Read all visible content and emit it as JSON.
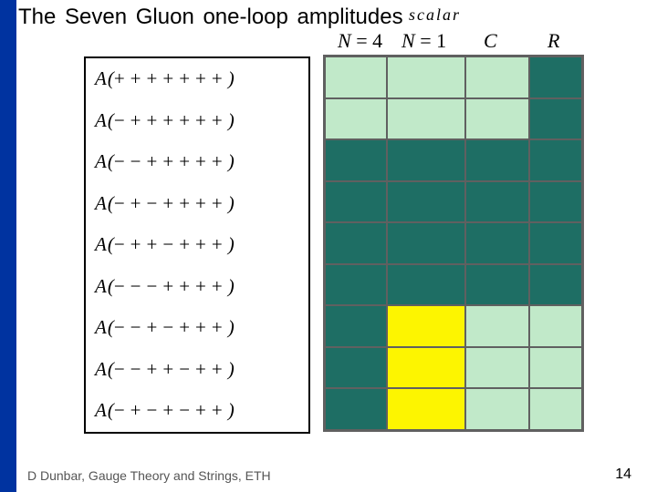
{
  "title": "The  Seven Gluon one-loop amplitudes",
  "scalar_label": "scalar",
  "headers": {
    "n4": "N = 4",
    "n1": "N = 1",
    "c": "C",
    "r": "R"
  },
  "amplitudes": [
    "A(+ + + + + + +)",
    "A(− + + + + + +)",
    "A(− − + + + + +)",
    "A(− + − + + + +)",
    "A(− + + − + + +)",
    "A(− − − + + + +)",
    "A(− − + − + + +)",
    "A(− − + + − + +)",
    "A(− + − + − + +)"
  ],
  "colors": {
    "mint": "#c1e9c9",
    "teal": "#1e6e64",
    "yellow": "#fdf500"
  },
  "grid": [
    [
      "mint",
      "mint",
      "mint",
      "teal"
    ],
    [
      "mint",
      "mint",
      "mint",
      "teal"
    ],
    [
      "teal",
      "teal",
      "teal",
      "teal"
    ],
    [
      "teal",
      "teal",
      "teal",
      "teal"
    ],
    [
      "teal",
      "teal",
      "teal",
      "teal"
    ],
    [
      "teal",
      "teal",
      "teal",
      "teal"
    ],
    [
      "teal",
      "yellow",
      "mint",
      "mint"
    ],
    [
      "teal",
      "yellow",
      "mint",
      "mint"
    ],
    [
      "teal",
      "yellow",
      "mint",
      "mint"
    ]
  ],
  "footer": "D Dunbar, Gauge Theory and Strings, ETH",
  "page": "14"
}
